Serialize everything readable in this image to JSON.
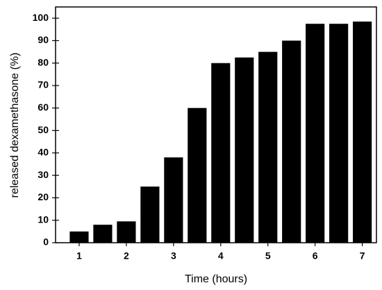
{
  "chart_data": {
    "type": "bar",
    "x_label": "Time (hours)",
    "y_label": "released dexamethasone (%)",
    "x": [
      1,
      1.5,
      2,
      2.5,
      3,
      3.5,
      4,
      4.5,
      5,
      5.5,
      6,
      6.5,
      7
    ],
    "values": [
      5,
      8,
      9.5,
      25,
      38,
      60,
      80,
      82.5,
      85,
      90,
      97.5,
      97.5,
      98.5
    ],
    "color": "#000000",
    "xlim": [
      0.5,
      7.3
    ],
    "xticks": [
      1,
      2,
      3,
      4,
      5,
      6,
      7
    ],
    "ylim": [
      0,
      105
    ],
    "yticks": [
      0,
      10,
      20,
      30,
      40,
      50,
      60,
      70,
      80,
      90,
      100
    ],
    "grid": false
  }
}
